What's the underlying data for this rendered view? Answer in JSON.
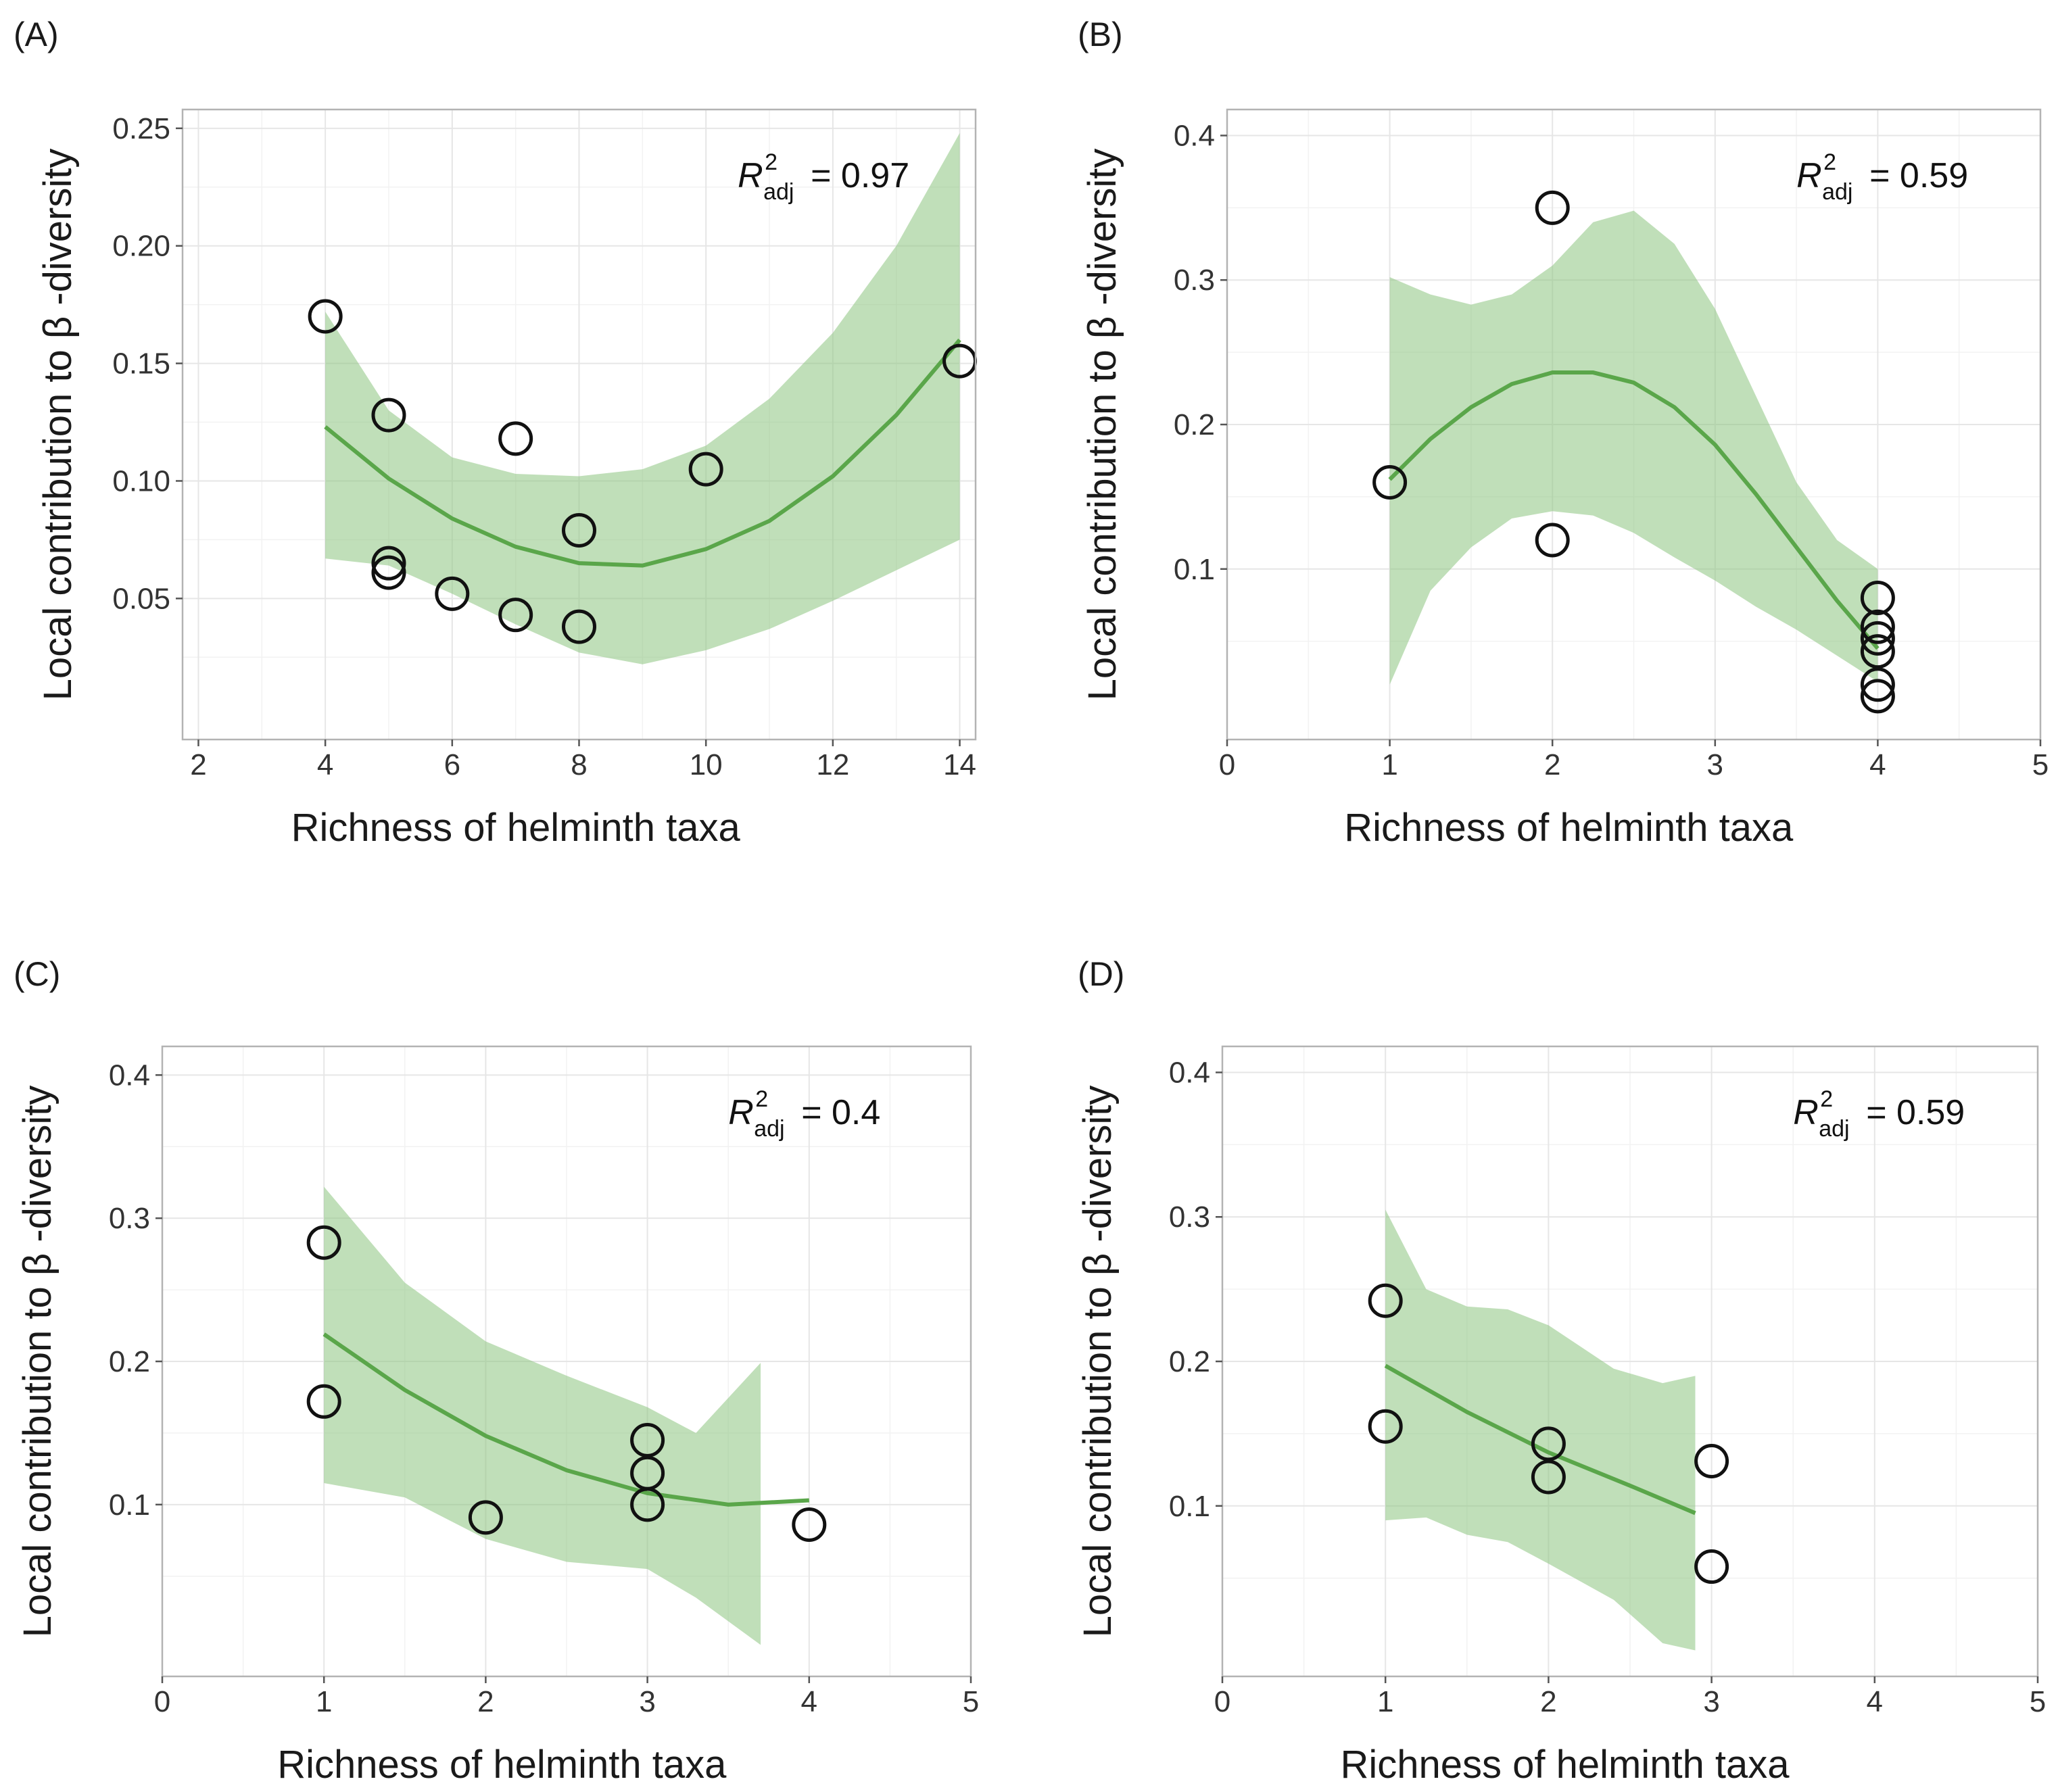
{
  "figure": {
    "ylabel": "Local contribution to β -diversity",
    "xlabel": "Richness of helminth taxa"
  },
  "chart_data": [
    {
      "type": "scatter",
      "panel": "(A)",
      "r2_label": "R",
      "r2_sup": "2",
      "r2_sub": "adj",
      "r2_value": "= 0.97",
      "xlabel": "Richness of helminth taxa",
      "ylabel": "Local contribution to β -diversity",
      "xlim": [
        1.75,
        14.25
      ],
      "ylim": [
        -0.01,
        0.258
      ],
      "xticks": [
        2,
        4,
        6,
        8,
        10,
        12,
        14
      ],
      "xtick_labels": [
        "2",
        "4",
        "6",
        "8",
        "10",
        "12",
        "14"
      ],
      "yticks": [
        0.05,
        0.1,
        0.15,
        0.2,
        0.25
      ],
      "ytick_labels": [
        "0.05",
        "0.10",
        "0.15",
        "0.20",
        "0.25"
      ],
      "points": [
        [
          4,
          0.17
        ],
        [
          5,
          0.128
        ],
        [
          5,
          0.065
        ],
        [
          5,
          0.061
        ],
        [
          6,
          0.052
        ],
        [
          7,
          0.118
        ],
        [
          7,
          0.043
        ],
        [
          8,
          0.079
        ],
        [
          8,
          0.038
        ],
        [
          10,
          0.105
        ],
        [
          14,
          0.151
        ]
      ],
      "fit": [
        [
          4,
          0.123
        ],
        [
          5,
          0.101
        ],
        [
          6,
          0.084
        ],
        [
          7,
          0.072
        ],
        [
          8,
          0.065
        ],
        [
          9,
          0.064
        ],
        [
          10,
          0.071
        ],
        [
          11,
          0.083
        ],
        [
          12,
          0.102
        ],
        [
          13,
          0.128
        ],
        [
          14,
          0.16
        ]
      ],
      "band_upper": [
        [
          4,
          0.172
        ],
        [
          5,
          0.13
        ],
        [
          6,
          0.11
        ],
        [
          7,
          0.103
        ],
        [
          8,
          0.102
        ],
        [
          9,
          0.105
        ],
        [
          10,
          0.115
        ],
        [
          11,
          0.135
        ],
        [
          12,
          0.163
        ],
        [
          13,
          0.2
        ],
        [
          14,
          0.248
        ]
      ],
      "band_lower": [
        [
          4,
          0.067
        ],
        [
          5,
          0.064
        ],
        [
          6,
          0.052
        ],
        [
          7,
          0.039
        ],
        [
          8,
          0.027
        ],
        [
          9,
          0.022
        ],
        [
          10,
          0.028
        ],
        [
          11,
          0.037
        ],
        [
          12,
          0.049
        ],
        [
          13,
          0.062
        ],
        [
          14,
          0.075
        ]
      ]
    },
    {
      "type": "scatter",
      "panel": "(B)",
      "r2_label": "R",
      "r2_sup": "2",
      "r2_sub": "adj",
      "r2_value": "= 0.59",
      "xlabel": "Richness of helminth taxa",
      "ylabel": "Local contribution to β -diversity",
      "xlim": [
        0,
        5
      ],
      "ylim": [
        -0.018,
        0.418
      ],
      "xticks": [
        0,
        1,
        2,
        3,
        4,
        5
      ],
      "xtick_labels": [
        "0",
        "1",
        "2",
        "3",
        "4",
        "5"
      ],
      "yticks": [
        0.1,
        0.2,
        0.3,
        0.4
      ],
      "ytick_labels": [
        "0.1",
        "0.2",
        "0.3",
        "0.4"
      ],
      "points": [
        [
          1,
          0.16
        ],
        [
          2,
          0.35
        ],
        [
          2,
          0.12
        ],
        [
          4,
          0.08
        ],
        [
          4,
          0.06
        ],
        [
          4,
          0.052
        ],
        [
          4,
          0.043
        ],
        [
          4,
          0.02
        ],
        [
          4,
          0.012
        ]
      ],
      "fit": [
        [
          1,
          0.162
        ],
        [
          1.25,
          0.19
        ],
        [
          1.5,
          0.212
        ],
        [
          1.75,
          0.228
        ],
        [
          2,
          0.236
        ],
        [
          2.25,
          0.236
        ],
        [
          2.5,
          0.229
        ],
        [
          2.75,
          0.212
        ],
        [
          3,
          0.186
        ],
        [
          3.25,
          0.152
        ],
        [
          3.5,
          0.115
        ],
        [
          3.75,
          0.078
        ],
        [
          4,
          0.045
        ]
      ],
      "band_upper": [
        [
          1,
          0.302
        ],
        [
          1.25,
          0.29
        ],
        [
          1.5,
          0.283
        ],
        [
          1.75,
          0.29
        ],
        [
          2,
          0.31
        ],
        [
          2.25,
          0.34
        ],
        [
          2.5,
          0.348
        ],
        [
          2.75,
          0.325
        ],
        [
          3,
          0.28
        ],
        [
          3.25,
          0.22
        ],
        [
          3.5,
          0.16
        ],
        [
          3.75,
          0.12
        ],
        [
          4,
          0.1
        ]
      ],
      "band_lower": [
        [
          1,
          0.02
        ],
        [
          1.25,
          0.085
        ],
        [
          1.5,
          0.115
        ],
        [
          1.75,
          0.135
        ],
        [
          2,
          0.14
        ],
        [
          2.25,
          0.137
        ],
        [
          2.5,
          0.125
        ],
        [
          2.75,
          0.108
        ],
        [
          3,
          0.092
        ],
        [
          3.25,
          0.074
        ],
        [
          3.5,
          0.058
        ],
        [
          3.75,
          0.04
        ],
        [
          4,
          0.022
        ]
      ]
    },
    {
      "type": "scatter",
      "panel": "(C)",
      "r2_label": "R",
      "r2_sup": "2",
      "r2_sub": "adj",
      "r2_value": "= 0.4",
      "xlabel": "Richness of helminth taxa",
      "ylabel": "Local contribution to β -diversity",
      "xlim": [
        0,
        5
      ],
      "ylim": [
        -0.02,
        0.42
      ],
      "xticks": [
        0,
        1,
        2,
        3,
        4,
        5
      ],
      "xtick_labels": [
        "0",
        "1",
        "2",
        "3",
        "4",
        "5"
      ],
      "yticks": [
        0.1,
        0.2,
        0.3,
        0.4
      ],
      "ytick_labels": [
        "0.1",
        "0.2",
        "0.3",
        "0.4"
      ],
      "points": [
        [
          1,
          0.283
        ],
        [
          1,
          0.172
        ],
        [
          2,
          0.091
        ],
        [
          3,
          0.145
        ],
        [
          3,
          0.122
        ],
        [
          3,
          0.1
        ],
        [
          4,
          0.086
        ]
      ],
      "fit": [
        [
          1,
          0.219
        ],
        [
          1.5,
          0.18
        ],
        [
          2,
          0.148
        ],
        [
          2.5,
          0.124
        ],
        [
          3,
          0.108
        ],
        [
          3.5,
          0.1
        ],
        [
          4,
          0.103
        ]
      ],
      "band_upper": [
        [
          1,
          0.322
        ],
        [
          1.5,
          0.255
        ],
        [
          2,
          0.214
        ],
        [
          2.5,
          0.19
        ],
        [
          3,
          0.168
        ],
        [
          3.3,
          0.15
        ],
        [
          3.7,
          0.199
        ]
      ],
      "band_lower": [
        [
          3.7,
          0.002
        ],
        [
          3.3,
          0.035
        ],
        [
          3,
          0.055
        ],
        [
          2.5,
          0.06
        ],
        [
          2,
          0.076
        ],
        [
          1.5,
          0.105
        ],
        [
          1,
          0.115
        ]
      ]
    },
    {
      "type": "scatter",
      "panel": "(D)",
      "r2_label": "R",
      "r2_sup": "2",
      "r2_sub": "adj",
      "r2_value": "= 0.59",
      "xlabel": "Richness of helminth taxa",
      "ylabel": "Local contribution to β -diversity",
      "xlim": [
        0,
        5
      ],
      "ylim": [
        -0.018,
        0.418
      ],
      "xticks": [
        0,
        1,
        2,
        3,
        4,
        5
      ],
      "xtick_labels": [
        "0",
        "1",
        "2",
        "3",
        "4",
        "5"
      ],
      "yticks": [
        0.1,
        0.2,
        0.3,
        0.4
      ],
      "ytick_labels": [
        "0.1",
        "0.2",
        "0.3",
        "0.4"
      ],
      "points": [
        [
          1,
          0.242
        ],
        [
          1,
          0.155
        ],
        [
          2,
          0.143
        ],
        [
          2,
          0.12
        ],
        [
          3,
          0.131
        ],
        [
          3,
          0.058
        ]
      ],
      "fit": [
        [
          1,
          0.197
        ],
        [
          1.5,
          0.165
        ],
        [
          2,
          0.137
        ],
        [
          2.5,
          0.114
        ],
        [
          2.9,
          0.095
        ]
      ],
      "band_upper": [
        [
          1,
          0.305
        ],
        [
          1.25,
          0.25
        ],
        [
          1.5,
          0.238
        ],
        [
          1.75,
          0.236
        ],
        [
          2,
          0.225
        ],
        [
          2.4,
          0.195
        ],
        [
          2.7,
          0.185
        ],
        [
          2.9,
          0.19
        ]
      ],
      "band_lower": [
        [
          2.9,
          0.0
        ],
        [
          2.7,
          0.005
        ],
        [
          2.4,
          0.035
        ],
        [
          2,
          0.06
        ],
        [
          1.75,
          0.075
        ],
        [
          1.5,
          0.08
        ],
        [
          1.25,
          0.092
        ],
        [
          1,
          0.09
        ]
      ]
    }
  ]
}
